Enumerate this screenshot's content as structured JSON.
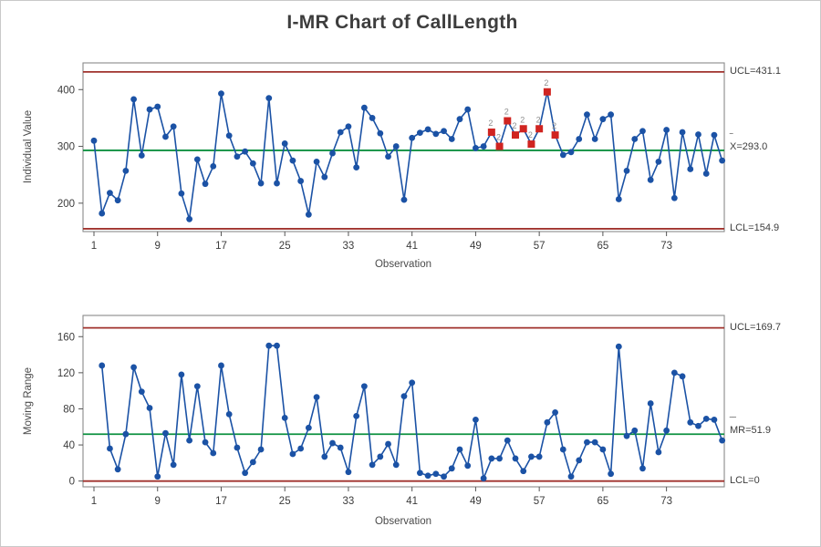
{
  "title": "I-MR Chart of CallLength",
  "colors": {
    "series_line": "#1b52a5",
    "marker_blue": "#1b52a5",
    "marker_ooc_red": "#d02420",
    "limit_line_red": "#a0322d",
    "center_line_green": "#0e9140",
    "frame_gray": "#8a8a8a",
    "tick_text": "#3b3b3b",
    "ooc_label_gray": "#8e8e8e"
  },
  "chart_data": [
    {
      "type": "line",
      "name": "individuals",
      "ylabel": "Individual Value",
      "xlabel": "Observation",
      "x_ticks": [
        1,
        9,
        17,
        25,
        33,
        41,
        49,
        57,
        65,
        73
      ],
      "y_ticks": [
        200,
        300,
        400
      ],
      "ylim": [
        150,
        447
      ],
      "ucl": 431.1,
      "center": 293.0,
      "lcl": 154.9,
      "labels": {
        "ucl": "UCL=431.1",
        "center": "X=293.0",
        "center_bar": "‾",
        "lcl": "LCL=154.9"
      },
      "x_start": 1,
      "values": [
        310,
        182,
        218,
        205,
        257,
        383,
        284,
        365,
        370,
        317,
        335,
        217,
        172,
        277,
        234,
        265,
        393,
        319,
        282,
        291,
        270,
        235,
        385,
        235,
        305,
        275,
        239,
        180,
        273,
        246,
        288,
        325,
        335,
        263,
        368,
        350,
        323,
        282,
        300,
        206,
        315,
        324,
        330,
        322,
        327,
        313,
        348,
        365,
        297,
        300,
        325,
        300,
        345,
        320,
        331,
        304,
        331,
        396,
        320,
        285,
        290,
        313,
        356,
        313,
        348,
        356,
        207,
        257,
        313,
        327,
        241,
        273,
        329,
        209,
        325,
        260,
        321,
        252,
        320,
        275
      ],
      "out_of_control": [
        51,
        52,
        53,
        54,
        55,
        56,
        57,
        58,
        59
      ],
      "ooc_label": "2",
      "legend_position": "none",
      "grid": false
    },
    {
      "type": "line",
      "name": "moving_range",
      "ylabel": "Moving Range",
      "xlabel": "Observation",
      "x_ticks": [
        1,
        9,
        17,
        25,
        33,
        41,
        49,
        57,
        65,
        73
      ],
      "y_ticks": [
        0,
        40,
        80,
        120,
        160
      ],
      "ylim": [
        -6.4,
        183.5
      ],
      "ucl": 169.7,
      "center": 51.9,
      "lcl": 0,
      "labels": {
        "ucl": "UCL=169.7",
        "center": "MR=51.9",
        "center_bar": "‾‾",
        "lcl": "LCL=0"
      },
      "x_start": 2,
      "values": [
        128,
        36,
        13,
        52,
        126,
        99,
        81,
        5,
        53,
        18,
        118,
        45,
        105,
        43,
        31,
        128,
        74,
        37,
        9,
        21,
        35,
        150,
        150,
        70,
        30,
        36,
        59,
        93,
        27,
        42,
        37,
        10,
        72,
        105,
        18,
        27,
        41,
        18,
        94,
        109,
        9,
        6,
        8,
        5,
        14,
        35,
        17,
        68,
        3,
        25,
        25,
        45,
        25,
        11,
        27,
        27,
        65,
        76,
        35,
        5,
        23,
        43,
        43,
        35,
        8,
        149,
        50,
        56,
        14,
        86,
        32,
        56,
        120,
        116,
        65,
        61,
        69,
        68,
        45
      ],
      "out_of_control": [],
      "ooc_label": "2",
      "legend_position": "none",
      "grid": false
    }
  ]
}
